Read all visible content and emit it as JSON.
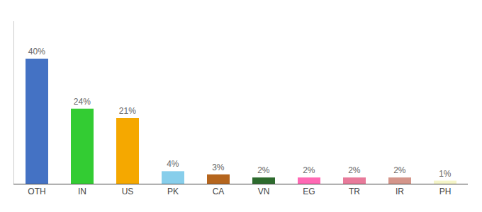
{
  "chart_data": {
    "type": "bar",
    "categories": [
      "OTH",
      "IN",
      "US",
      "PK",
      "CA",
      "VN",
      "EG",
      "TR",
      "IR",
      "PH"
    ],
    "values": [
      40,
      24,
      21,
      4,
      3,
      2,
      2,
      2,
      2,
      1
    ],
    "value_labels": [
      "40%",
      "24%",
      "21%",
      "4%",
      "3%",
      "2%",
      "2%",
      "2%",
      "2%",
      "1%"
    ],
    "colors": [
      "#4472c4",
      "#33cc33",
      "#f5a800",
      "#87ceeb",
      "#b5651d",
      "#2d6a2d",
      "#ff69b4",
      "#e87a9a",
      "#d4958a",
      "#f5f5c8"
    ],
    "ylim": [
      0,
      52
    ],
    "grid": false,
    "data_labels": true,
    "tick_labels": "x"
  }
}
